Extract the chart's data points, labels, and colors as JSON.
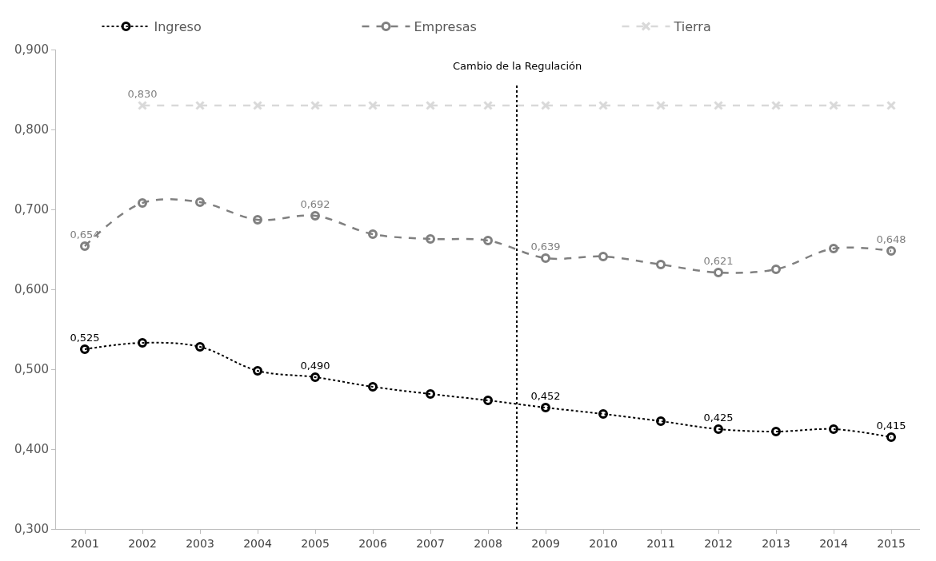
{
  "chart_data": {
    "type": "line",
    "x": [
      2001,
      2002,
      2003,
      2004,
      2005,
      2006,
      2007,
      2008,
      2009,
      2010,
      2011,
      2012,
      2013,
      2014,
      2015
    ],
    "xlim": [
      2000.5,
      2015.5
    ],
    "xticks": [
      2001,
      2002,
      2003,
      2004,
      2005,
      2006,
      2007,
      2008,
      2009,
      2010,
      2011,
      2012,
      2013,
      2014,
      2015
    ],
    "ylim": [
      0.3,
      0.9
    ],
    "yticks": [
      {
        "value": 0.3,
        "label": "0,300"
      },
      {
        "value": 0.4,
        "label": "0,400"
      },
      {
        "value": 0.5,
        "label": "0,500"
      },
      {
        "value": 0.6,
        "label": "0,600"
      },
      {
        "value": 0.7,
        "label": "0,700"
      },
      {
        "value": 0.8,
        "label": "0,800"
      },
      {
        "value": 0.9,
        "label": "0,900"
      }
    ],
    "legend": "top",
    "series": [
      {
        "name": "Ingreso",
        "color": "#000000",
        "marker": "circle",
        "line_style": "dotted",
        "values": [
          0.525,
          0.533,
          0.528,
          0.498,
          0.49,
          0.478,
          0.469,
          0.461,
          0.452,
          0.444,
          0.435,
          0.425,
          0.422,
          0.425,
          0.415
        ],
        "value_labels": [
          "0,525",
          null,
          null,
          null,
          "0,490",
          null,
          null,
          null,
          "0,452",
          null,
          null,
          "0,425",
          null,
          null,
          "0,415"
        ]
      },
      {
        "name": "Empresas",
        "color": "#808080",
        "marker": "circle",
        "line_style": "dashed",
        "values": [
          0.654,
          0.708,
          0.709,
          0.687,
          0.692,
          0.669,
          0.663,
          0.661,
          0.639,
          0.641,
          0.631,
          0.621,
          0.625,
          0.651,
          0.648
        ],
        "value_labels": [
          "0,654",
          null,
          null,
          null,
          "0,692",
          null,
          null,
          null,
          "0,639",
          null,
          null,
          "0,621",
          null,
          null,
          "0,648"
        ]
      },
      {
        "name": "Tierra",
        "color": "#d9d9d9",
        "marker": "cross",
        "line_style": "dashed",
        "values": [
          null,
          0.83,
          0.83,
          0.83,
          0.83,
          0.83,
          0.83,
          0.83,
          0.83,
          0.83,
          0.83,
          0.83,
          0.83,
          0.83,
          0.83
        ],
        "value_labels": [
          null,
          "0,830",
          null,
          null,
          null,
          null,
          null,
          null,
          null,
          null,
          null,
          null,
          null,
          null,
          null
        ]
      }
    ],
    "ref_lines": [
      {
        "axis": "x",
        "value": 2008.5,
        "label": "Cambio de la Regulación",
        "color": "#000000",
        "line_style": "dotted"
      }
    ]
  }
}
